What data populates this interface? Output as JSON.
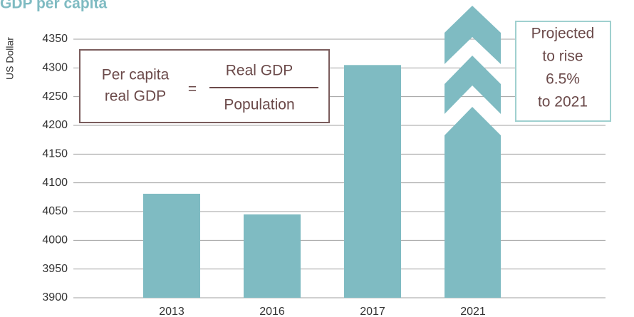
{
  "chart_data": {
    "type": "bar",
    "title": "GDP per capita",
    "y_label": "US Dollar",
    "categories": [
      "2013",
      "2016",
      "2017",
      "2021"
    ],
    "values": [
      4081,
      4045,
      4305,
      null
    ],
    "color": "#7fbbc2",
    "ylim": [
      3900,
      4350
    ],
    "yticks": [
      3900,
      3950,
      4000,
      4050,
      4100,
      4150,
      4200,
      4250,
      4300,
      4350
    ],
    "grid": true,
    "annotations": {
      "formula": {
        "left": [
          "Per capita",
          "real GDP"
        ],
        "equals": "=",
        "numerator": "Real GDP",
        "denominator": "Population"
      },
      "projection": [
        "Projected",
        "to rise",
        "6.5%",
        "to 2021"
      ]
    }
  }
}
